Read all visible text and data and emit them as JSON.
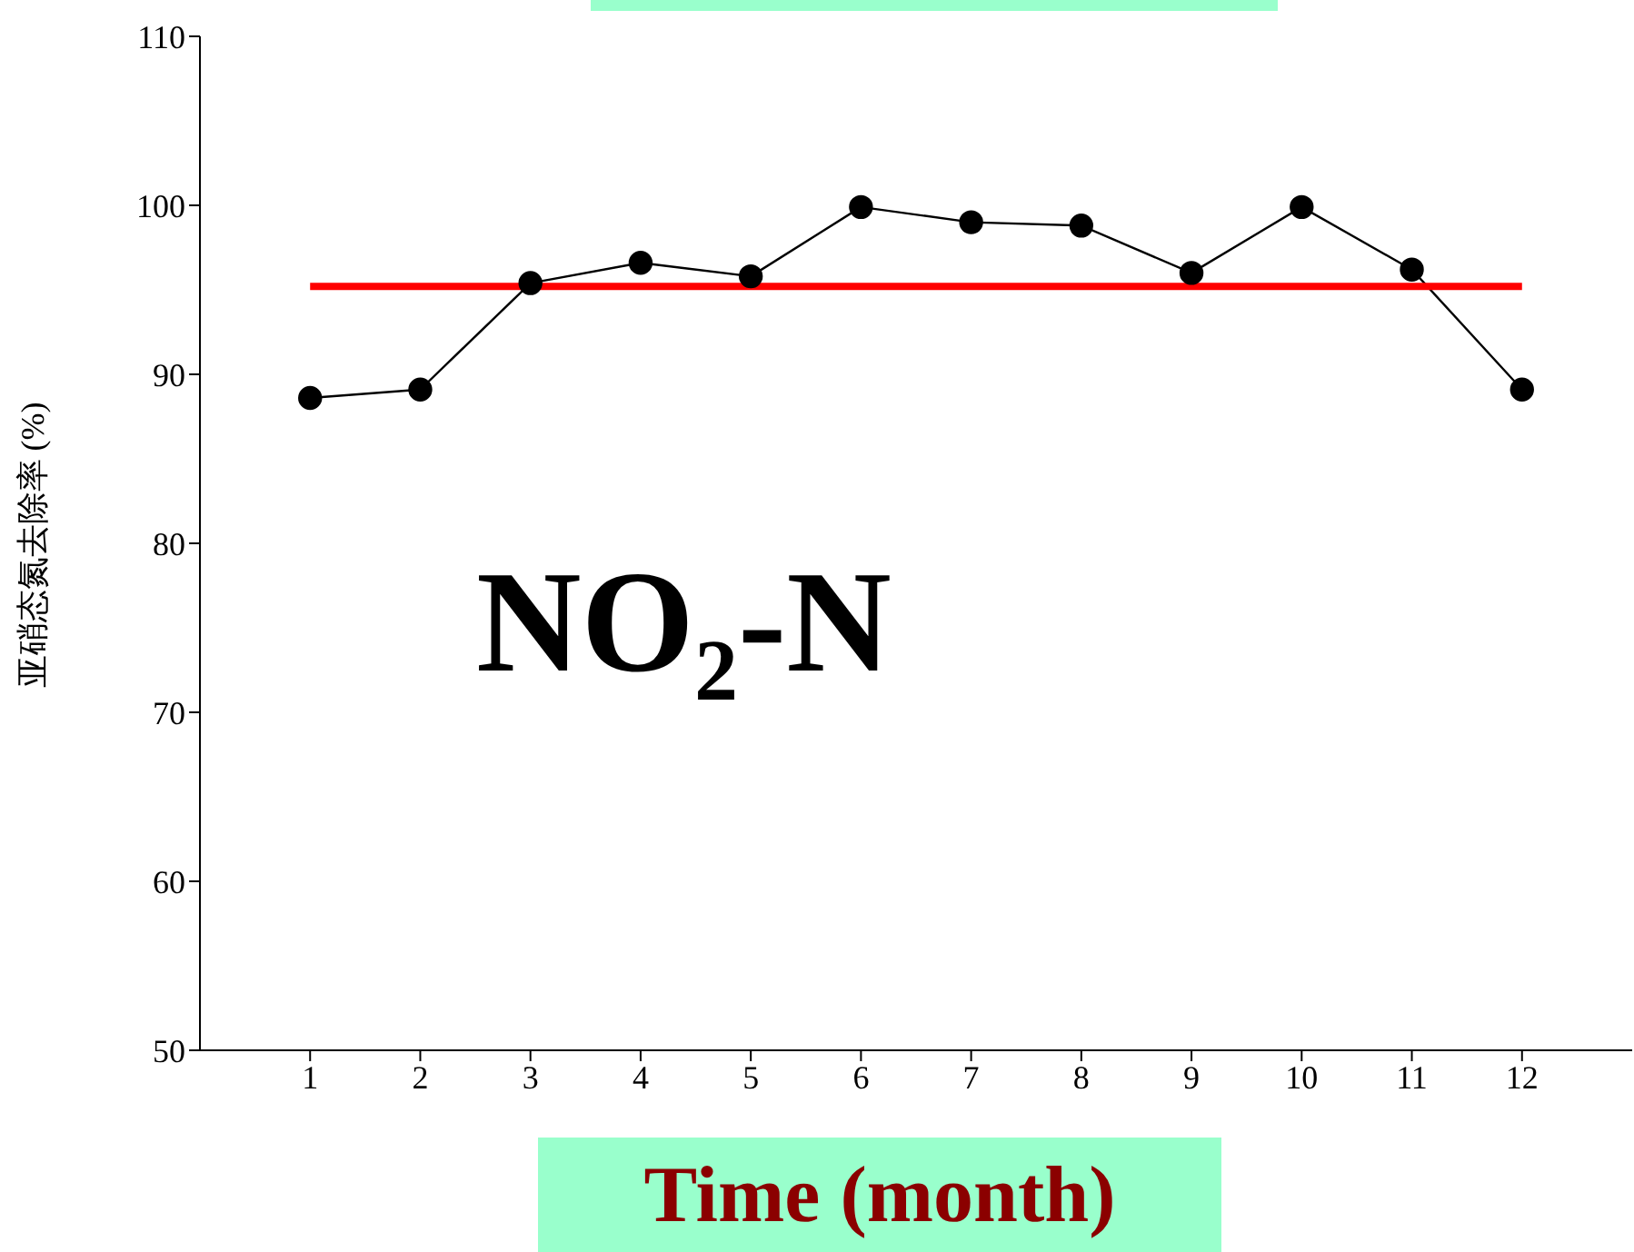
{
  "chart_data": {
    "type": "line",
    "xlabel": "Time (month)",
    "ylabel": "亚硝态氮去除率 (%)",
    "annotations": [
      "NO₂-N"
    ],
    "x": [
      1,
      2,
      3,
      4,
      5,
      6,
      7,
      8,
      9,
      10,
      11,
      12
    ],
    "xlim": [
      0,
      13
    ],
    "xticks": [
      1,
      2,
      3,
      4,
      5,
      6,
      7,
      8,
      9,
      10,
      11,
      12
    ],
    "ylim": [
      50,
      110
    ],
    "yticks": [
      50,
      60,
      70,
      80,
      90,
      100,
      110
    ],
    "marker": "circle",
    "series": [
      {
        "color": "#000000",
        "values": [
          88.6,
          89.1,
          95.4,
          96.6,
          95.8,
          99.9,
          99.0,
          98.8,
          96.0,
          99.9,
          96.2,
          89.1
        ]
      },
      {
        "color": "#ff0000",
        "marker": "none",
        "x": [
          1,
          12
        ],
        "values": [
          95.2,
          95.2
        ]
      }
    ]
  }
}
